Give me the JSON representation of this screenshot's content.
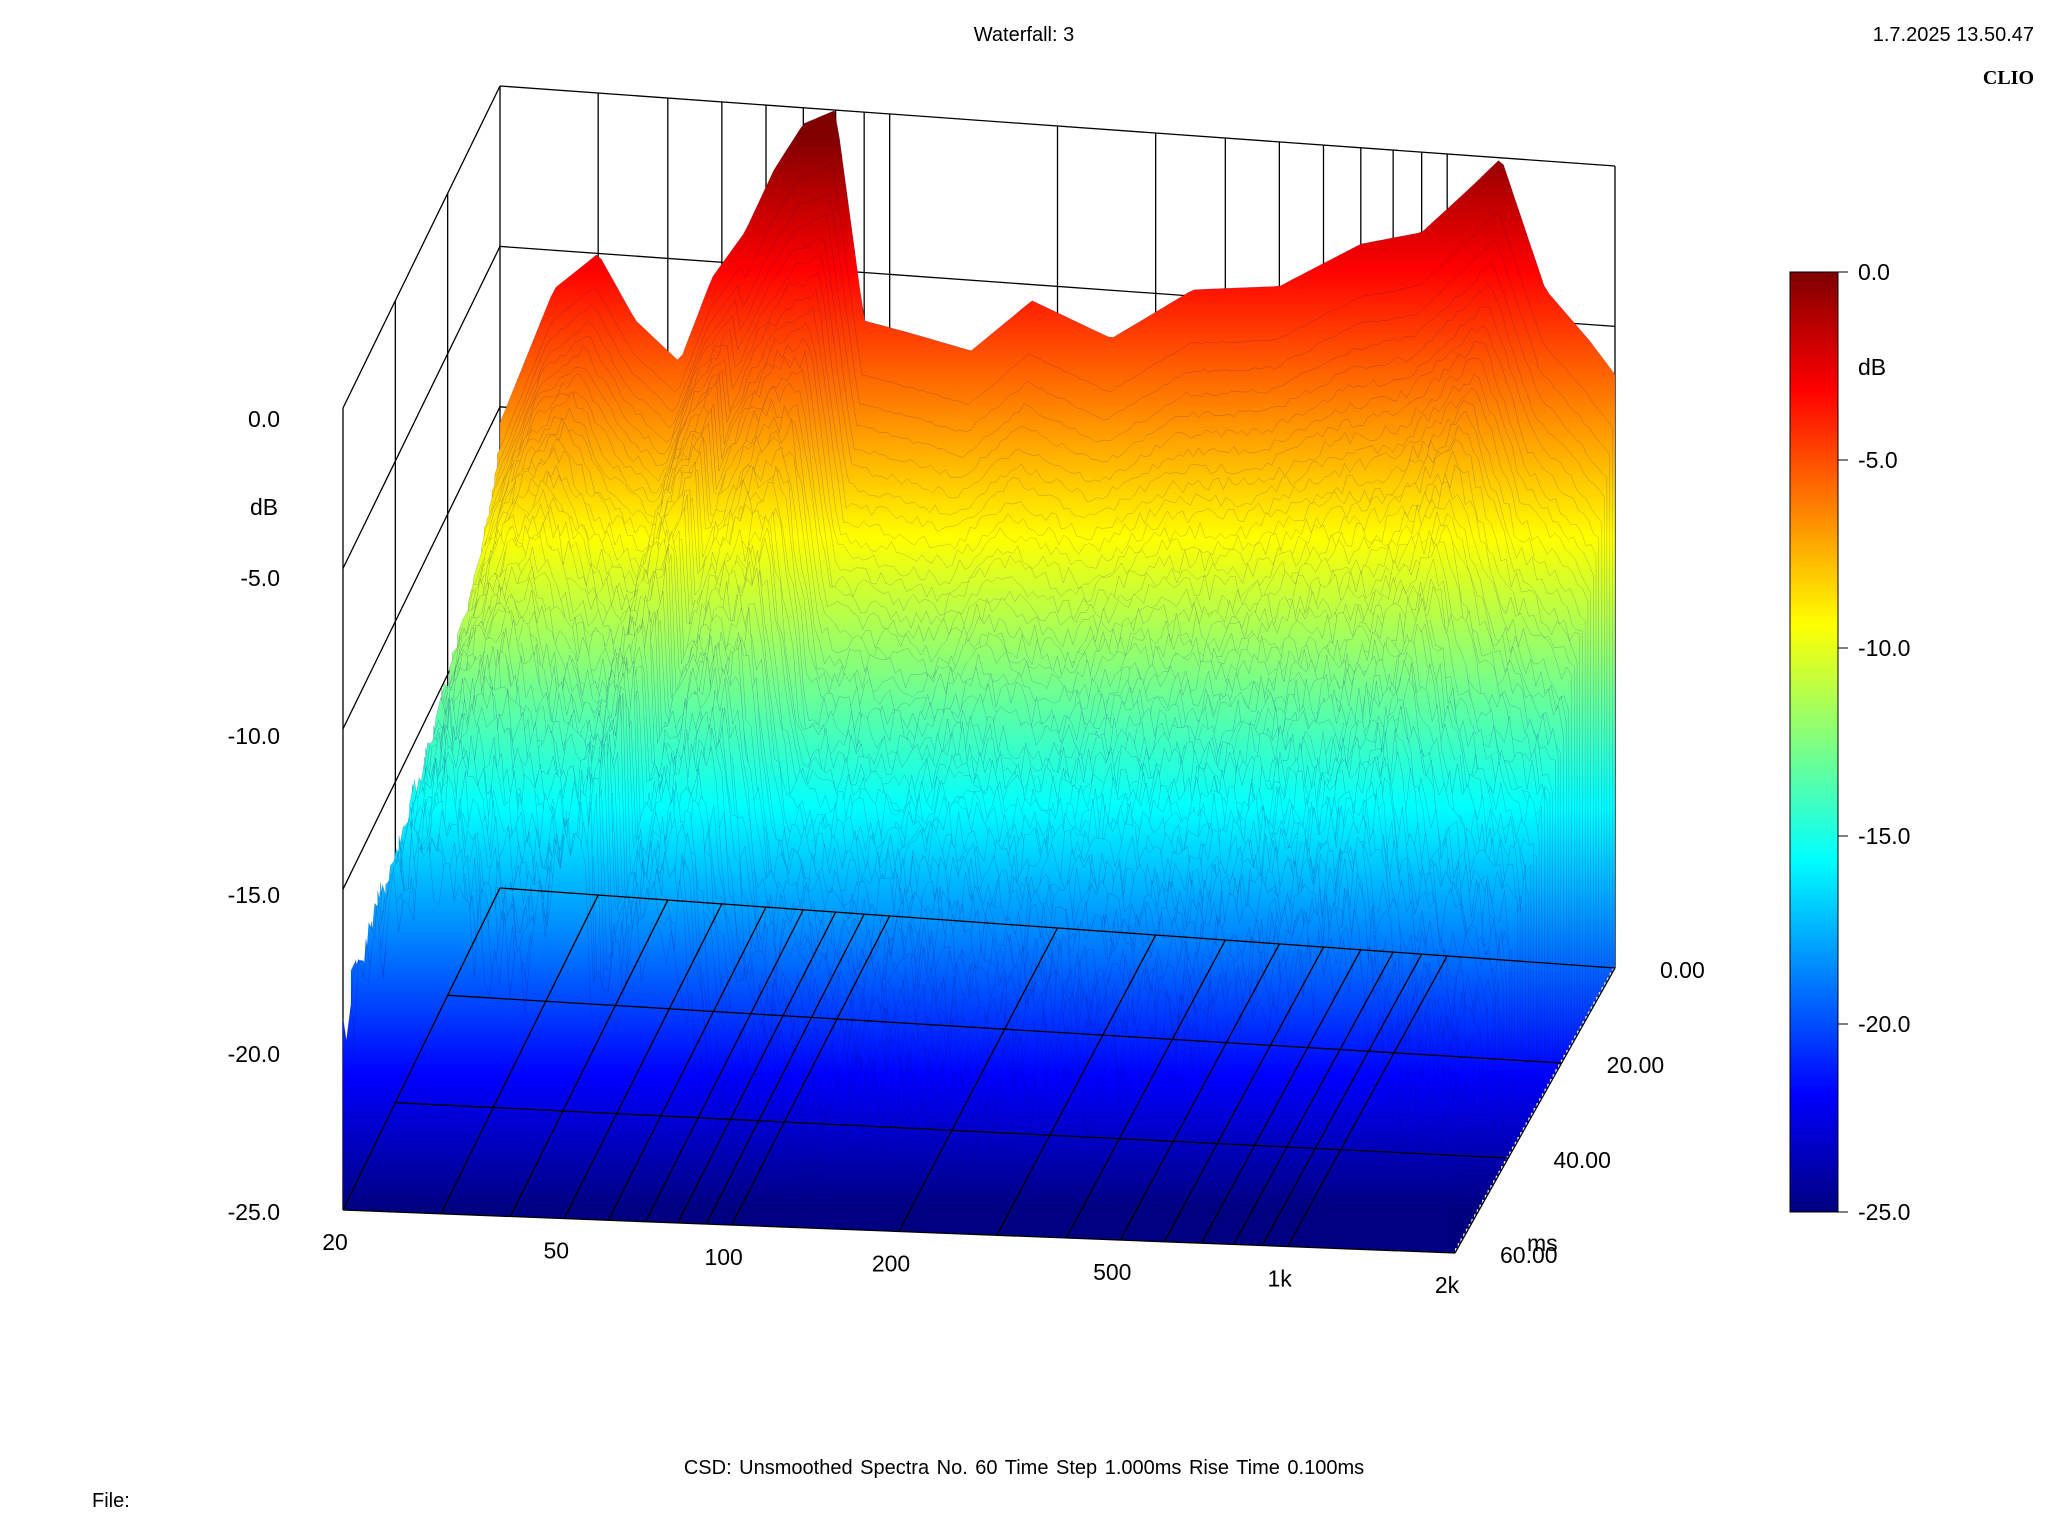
{
  "header": {
    "title": "Waterfall: 3",
    "timestamp": "1.7.2025 13.50.47",
    "brand": "CLIO"
  },
  "footer": {
    "settings": "CSD:   Unsmoothed   Spectra No. 60   Time Step 1.000ms   Rise Time 0.100ms",
    "file_label": "File:"
  },
  "colors": {
    "colormap": [
      "#000080",
      "#0000ff",
      "#0080ff",
      "#00ffff",
      "#80ff80",
      "#ffff00",
      "#ff8000",
      "#ff0000",
      "#800000"
    ],
    "grid": "#000000",
    "background": "#ffffff"
  },
  "chart_data": {
    "type": "waterfall",
    "x_axis": {
      "unit_label": "",
      "scale": "log",
      "range": [
        20,
        2000
      ],
      "ticks": [
        {
          "value": 20,
          "label": "20"
        },
        {
          "value": 50,
          "label": "50"
        },
        {
          "value": 100,
          "label": "100"
        },
        {
          "value": 200,
          "label": "200"
        },
        {
          "value": 500,
          "label": "500"
        },
        {
          "value": 1000,
          "label": "1k"
        },
        {
          "value": 2000,
          "label": "2k"
        }
      ]
    },
    "y_axis": {
      "unit_label": "dB",
      "range": [
        -25,
        0
      ],
      "ticks": [
        "0.0",
        "-5.0",
        "-10.0",
        "-15.0",
        "-20.0",
        "-25.0"
      ]
    },
    "z_axis": {
      "unit_label": "ms",
      "range": [
        0,
        60
      ],
      "ticks": [
        "0.00",
        "20.00",
        "40.00",
        "60.00"
      ]
    },
    "colorbar": {
      "unit_label": "dB",
      "range": [
        -25,
        0
      ],
      "ticks": [
        "0.0",
        "-5.0",
        "-10.0",
        "-15.0",
        "-20.0",
        "-25.0"
      ]
    },
    "spectra_count": 60,
    "time_step_ms": 1.0,
    "rise_time_ms": 0.1,
    "initial_spectrum_db": [
      {
        "f": 20,
        "db": -10.5
      },
      {
        "f": 25,
        "db": -6.2
      },
      {
        "f": 30,
        "db": -5.0
      },
      {
        "f": 35,
        "db": -7.0
      },
      {
        "f": 42,
        "db": -8.2
      },
      {
        "f": 48,
        "db": -5.5
      },
      {
        "f": 55,
        "db": -4.0
      },
      {
        "f": 62,
        "db": -2.0
      },
      {
        "f": 70,
        "db": -0.5
      },
      {
        "f": 80,
        "db": 0.0
      },
      {
        "f": 90,
        "db": -6.5
      },
      {
        "f": 110,
        "db": -6.8
      },
      {
        "f": 140,
        "db": -7.2
      },
      {
        "f": 180,
        "db": -5.5
      },
      {
        "f": 250,
        "db": -6.5
      },
      {
        "f": 350,
        "db": -4.8
      },
      {
        "f": 500,
        "db": -4.5
      },
      {
        "f": 700,
        "db": -3.0
      },
      {
        "f": 900,
        "db": -2.5
      },
      {
        "f": 1100,
        "db": -1.0
      },
      {
        "f": 1250,
        "db": 0.0
      },
      {
        "f": 1500,
        "db": -4.0
      },
      {
        "f": 1800,
        "db": -5.5
      },
      {
        "f": 2000,
        "db": -6.5
      }
    ]
  }
}
